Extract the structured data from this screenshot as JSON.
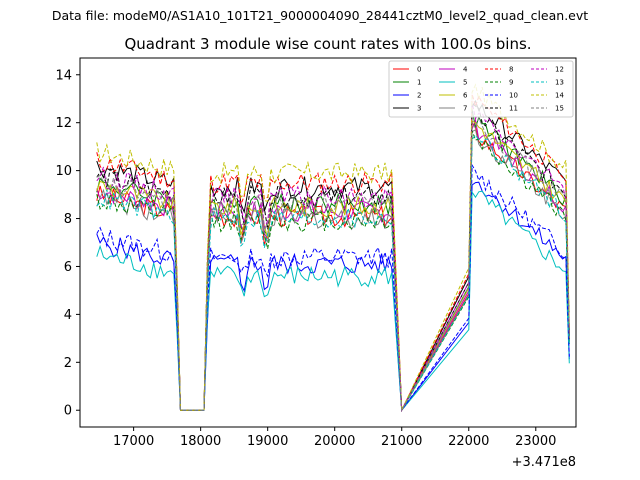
{
  "suptitle": "Data file: modeM0/AS1A10_101T21_9000004090_28441cztM0_level2_quad_clean.evt",
  "chart_data": {
    "type": "line",
    "title": "Quadrant 3 module wise count rates with 100.0s bins.",
    "xlabel": "",
    "ylabel": "",
    "offset_label": "+3.471e8",
    "x_ticks": [
      17000,
      18000,
      19000,
      20000,
      21000,
      22000,
      23000
    ],
    "y_ticks": [
      0,
      2,
      4,
      6,
      8,
      10,
      12,
      14
    ],
    "xlim": [
      16200,
      23600
    ],
    "ylim": [
      -0.7,
      14.7
    ],
    "grid": false,
    "legend_position": "top-right",
    "x_segments": [
      {
        "start": 16450,
        "step": 50,
        "count": 26
      },
      {
        "start": 17750,
        "step": 300,
        "count": 2
      },
      {
        "start": 18100,
        "step": 50,
        "count": 56
      },
      {
        "start": 21000,
        "step": 1000,
        "count": 2
      },
      {
        "start": 22000,
        "step": 50,
        "count": 31
      }
    ],
    "series": [
      {
        "name": "0",
        "color": "#ff0000",
        "dash": false,
        "level": 8.1
      },
      {
        "name": "1",
        "color": "#008000",
        "dash": false,
        "level": 8.6
      },
      {
        "name": "2",
        "color": "#0000ff",
        "dash": false,
        "level": 6.1
      },
      {
        "name": "3",
        "color": "#000000",
        "dash": false,
        "level": 9.3
      },
      {
        "name": "4",
        "color": "#bf00bf",
        "dash": false,
        "level": 8.3
      },
      {
        "name": "5",
        "color": "#00bfbf",
        "dash": false,
        "level": 5.6
      },
      {
        "name": "6",
        "color": "#bfbf00",
        "dash": false,
        "level": 8.5
      },
      {
        "name": "7",
        "color": "#808080",
        "dash": false,
        "level": 8.0
      },
      {
        "name": "8",
        "color": "#ff0000",
        "dash": true,
        "level": 9.5
      },
      {
        "name": "9",
        "color": "#008000",
        "dash": true,
        "level": 7.9
      },
      {
        "name": "10",
        "color": "#0000ff",
        "dash": true,
        "level": 6.4
      },
      {
        "name": "11",
        "color": "#000000",
        "dash": true,
        "level": 8.9
      },
      {
        "name": "12",
        "color": "#bf00bf",
        "dash": true,
        "level": 8.9
      },
      {
        "name": "13",
        "color": "#00bfbf",
        "dash": true,
        "level": 8.0
      },
      {
        "name": "14",
        "color": "#bfbf00",
        "dash": true,
        "level": 9.9
      },
      {
        "name": "15",
        "color": "#808080",
        "dash": true,
        "level": 8.6
      }
    ]
  }
}
